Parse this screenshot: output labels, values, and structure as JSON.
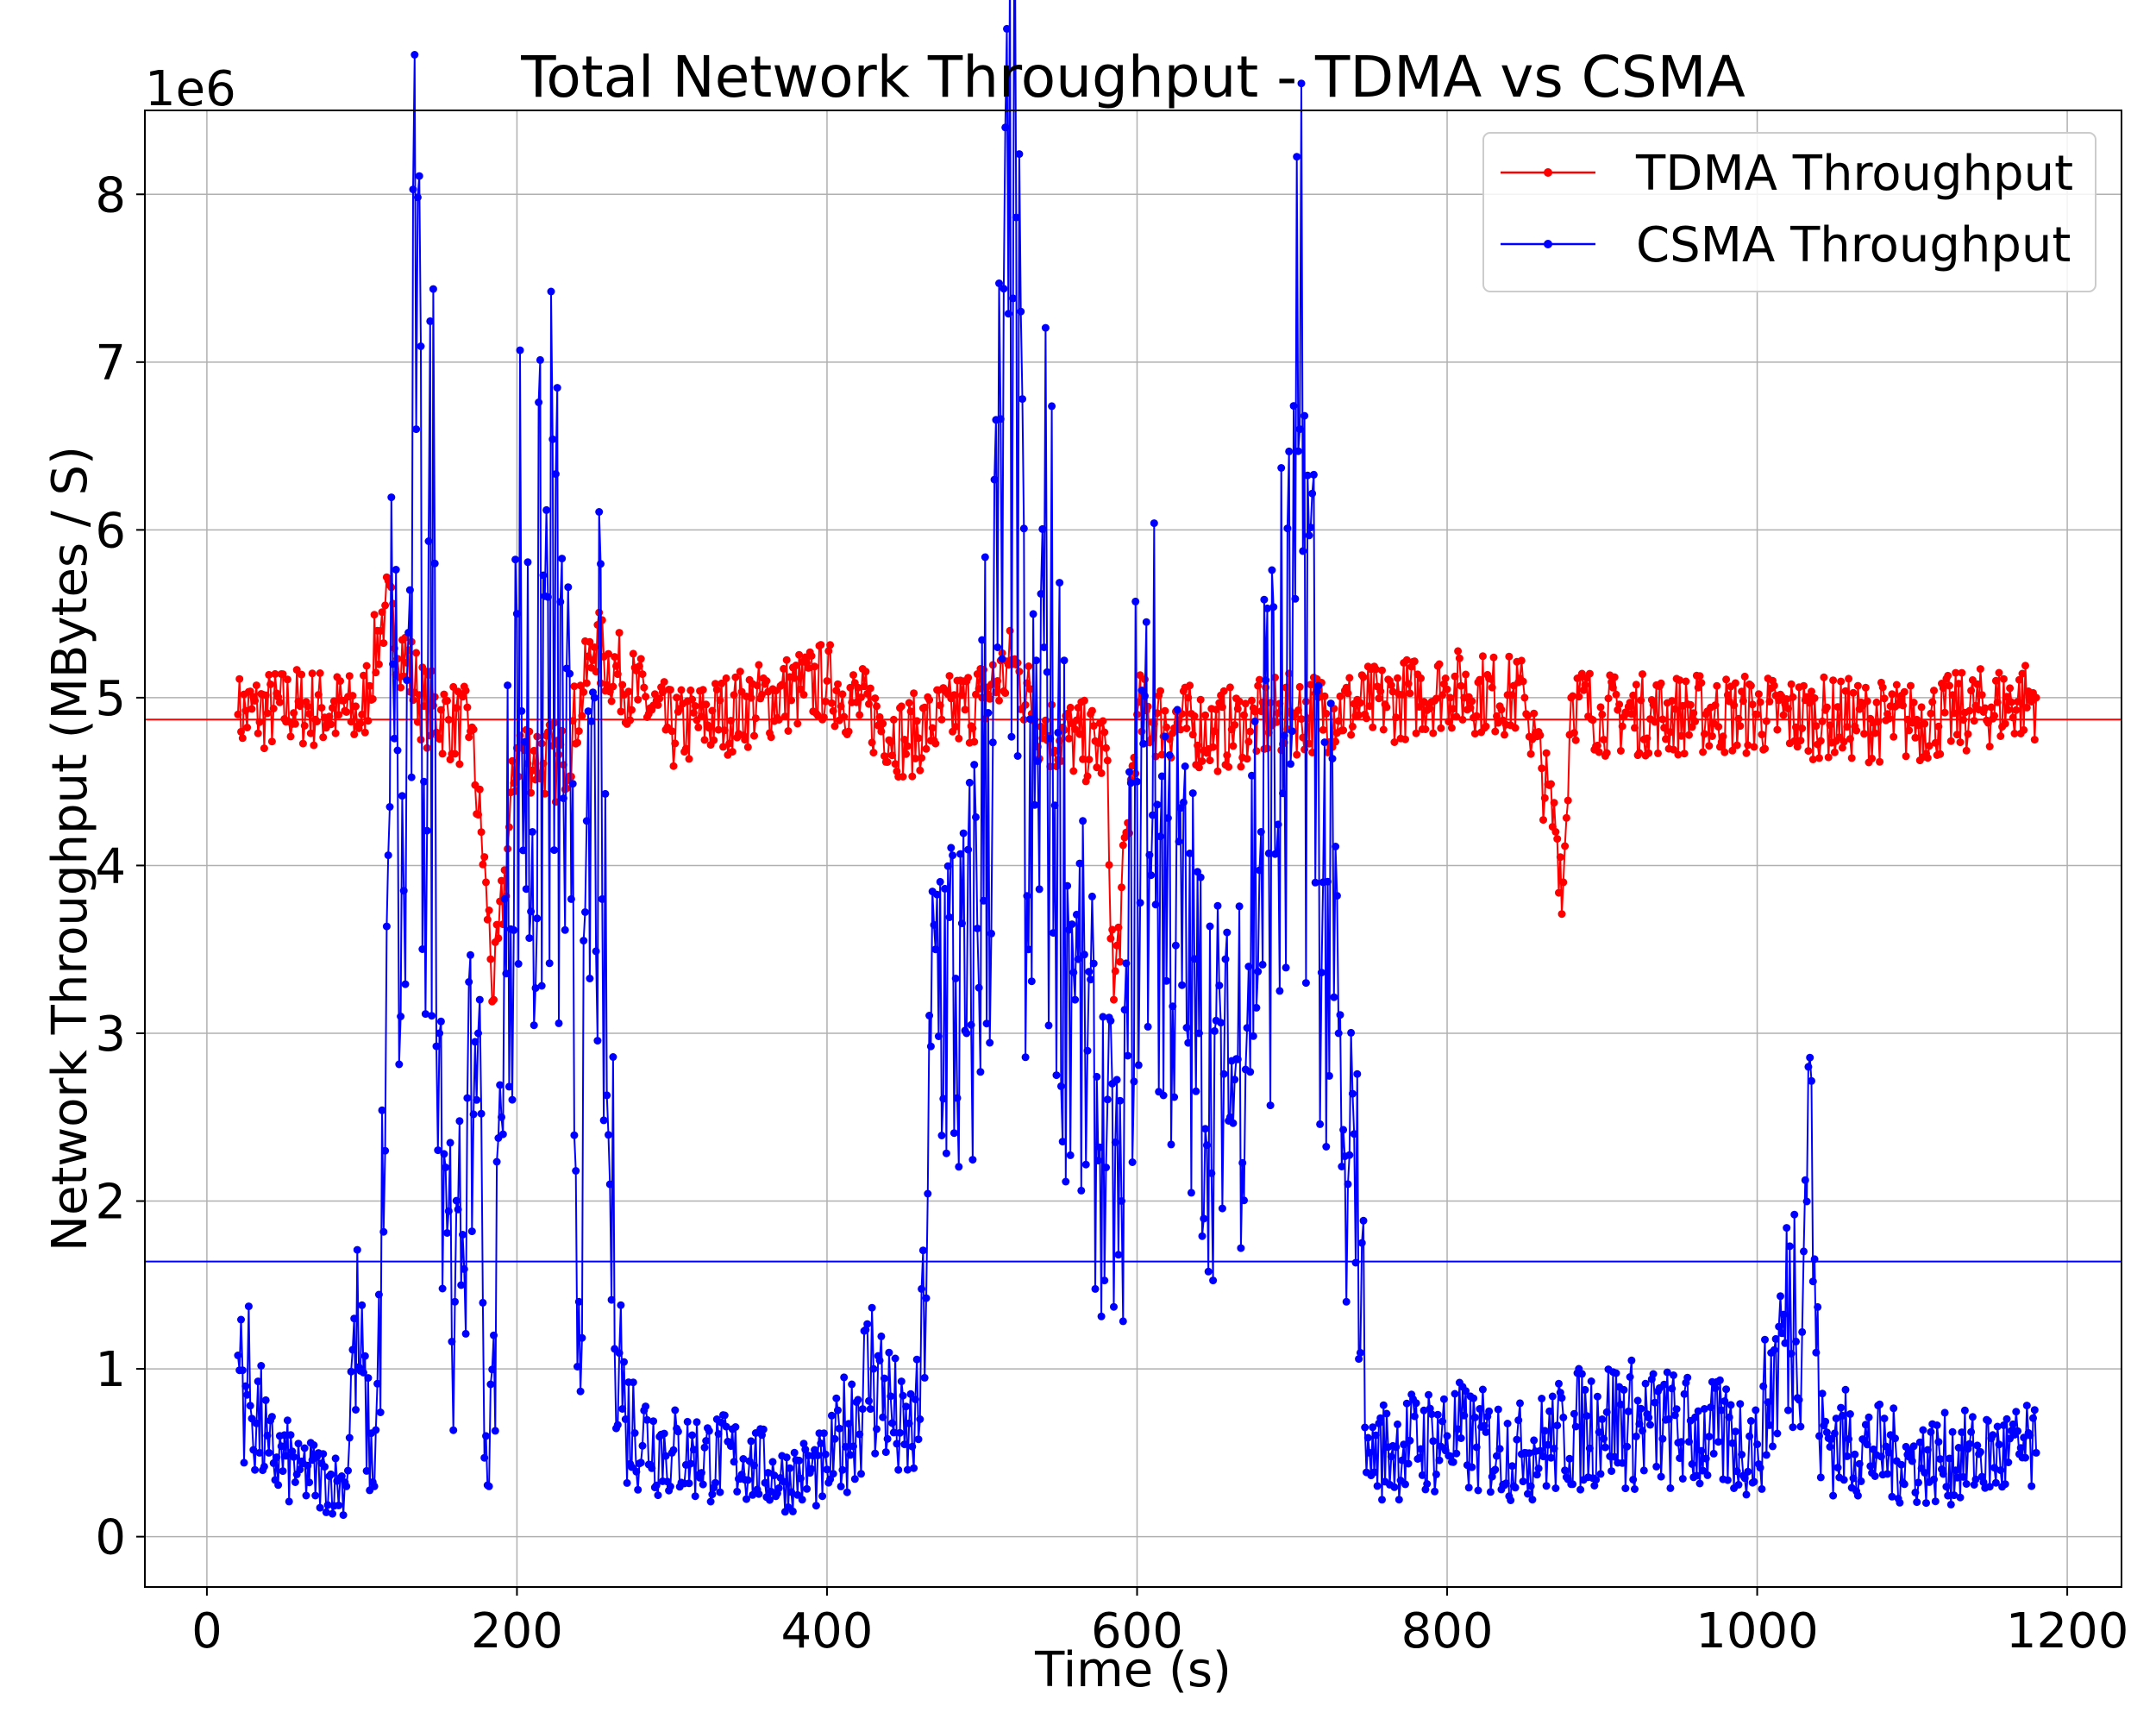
{
  "chart_data": {
    "type": "line",
    "title": "Total Network Throughput - TDMA vs CSMA",
    "xlabel": "Time (s)",
    "ylabel": "Network Throughput (MBytes / S)",
    "y_offset_label": "1e6",
    "xlim": [
      -40,
      1235
    ],
    "ylim": [
      -300000,
      8500000
    ],
    "x_ticks": [
      0,
      200,
      400,
      600,
      800,
      1000,
      1200
    ],
    "x_tick_labels": [
      "0",
      "200",
      "400",
      "600",
      "800",
      "1000",
      "1200"
    ],
    "y_ticks": [
      0,
      1000000,
      2000000,
      3000000,
      4000000,
      5000000,
      6000000,
      7000000,
      8000000
    ],
    "y_tick_labels": [
      "0",
      "1",
      "2",
      "3",
      "4",
      "5",
      "6",
      "7",
      "8"
    ],
    "grid": true,
    "legend_position": "top-right",
    "colors": {
      "tdma": "#ff0000",
      "csma": "#0000ff",
      "grid": "#b0b0b0"
    },
    "series": [
      {
        "name": "TDMA Throughput",
        "color": "#ff0000",
        "mean": 4870000,
        "sample_interval": 1,
        "x": [
          20,
          60,
          100,
          115,
          140,
          170,
          180,
          185,
          200,
          230,
          250,
          300,
          400,
          450,
          500,
          520,
          540,
          580,
          585,
          600,
          650,
          700,
          750,
          800,
          850,
          870,
          875,
          880,
          900,
          1000,
          1100,
          1180
        ],
        "values": [
          4900000,
          4950000,
          4900000,
          5550000,
          4950000,
          4800000,
          3900000,
          3200000,
          4700000,
          4600000,
          5300000,
          4800000,
          5100000,
          4750000,
          5000000,
          5200000,
          4800000,
          4700000,
          3200000,
          4900000,
          4800000,
          4900000,
          4950000,
          5050000,
          5000000,
          4200000,
          3900000,
          5000000,
          4900000,
          4900000,
          4850000,
          5000000
        ]
      },
      {
        "name": "CSMA Throughput",
        "color": "#0000ff",
        "mean": 1640000,
        "sample_interval": 1,
        "x": [
          20,
          40,
          60,
          90,
          95,
          108,
          115,
          120,
          125,
          135,
          140,
          147,
          150,
          160,
          165,
          175,
          180,
          182,
          185,
          190,
          200,
          210,
          220,
          230,
          235,
          240,
          250,
          255,
          260,
          270,
          300,
          350,
          370,
          400,
          430,
          450,
          460,
          470,
          490,
          510,
          520,
          530,
          540,
          560,
          580,
          590,
          600,
          610,
          640,
          660,
          680,
          700,
          705,
          720,
          730,
          735,
          740,
          750,
          800,
          850,
          900,
          1000,
          1030,
          1033,
          1040,
          1100,
          1180
        ],
        "values": [
          1080000,
          500000,
          400000,
          300000,
          1300000,
          300000,
          2300000,
          5200000,
          3100000,
          6600000,
          4500000,
          5800000,
          3000000,
          1400000,
          1800000,
          3000000,
          600000,
          300000,
          1200000,
          2500000,
          5500000,
          4200000,
          5600000,
          4400000,
          3800000,
          1400000,
          5000000,
          3800000,
          2100000,
          700000,
          500000,
          450000,
          350000,
          400000,
          1000000,
          550000,
          700000,
          3500000,
          3000000,
          5300000,
          7380000,
          3500000,
          5300000,
          3200000,
          2200000,
          2000000,
          4500000,
          4300000,
          3000000,
          2500000,
          4200000,
          4800000,
          6600000,
          3900000,
          3000000,
          1400000,
          2400000,
          500000,
          600000,
          500000,
          700000,
          550000,
          1700000,
          2800000,
          600000,
          450000,
          500000
        ]
      }
    ]
  }
}
